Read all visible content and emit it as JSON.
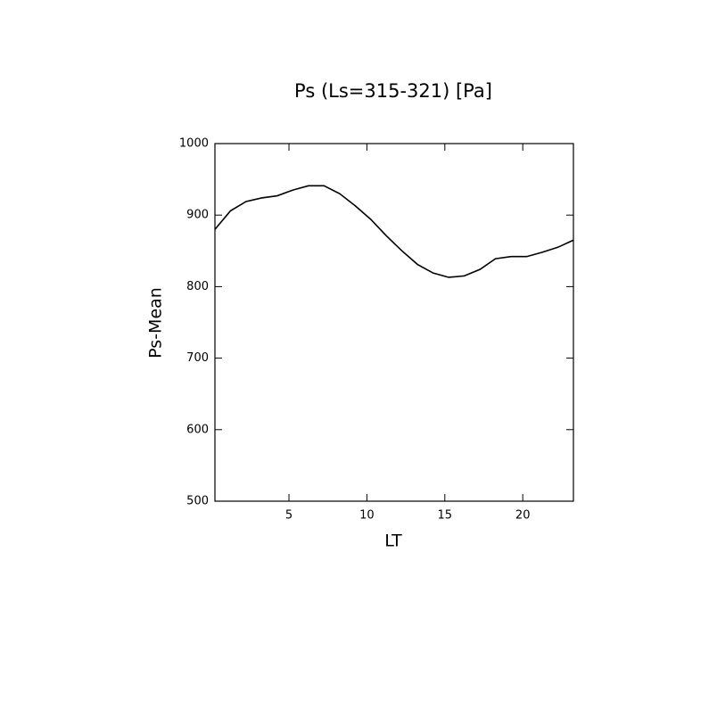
{
  "chart_data": {
    "type": "line",
    "title": "Ps (Ls=315-321) [Pa]",
    "x_label": "LT",
    "y_label": "Ps-Mean",
    "x": [
      0.25,
      1.25,
      2.25,
      3.25,
      4.25,
      5.25,
      6.25,
      7.25,
      8.25,
      9.25,
      10.25,
      11.25,
      12.25,
      13.25,
      14.25,
      15.25,
      16.25,
      17.25,
      18.25,
      19.25,
      20.25,
      21.25,
      22.25,
      23.25
    ],
    "series": [
      {
        "name": "Ps-Mean",
        "color": "#000000",
        "values": [
          880,
          906,
          919,
          924,
          927,
          935,
          941,
          941,
          930,
          913,
          894,
          871,
          850,
          831,
          819,
          813,
          815,
          824,
          839,
          842,
          842,
          848,
          855,
          865
        ]
      }
    ],
    "xlim": [
      0.25,
      23.25
    ],
    "xticks": [
      5,
      10,
      15,
      20
    ],
    "ylim": [
      500,
      1000
    ],
    "yticks": [
      500,
      600,
      700,
      800,
      900,
      1000
    ],
    "grid": false
  }
}
